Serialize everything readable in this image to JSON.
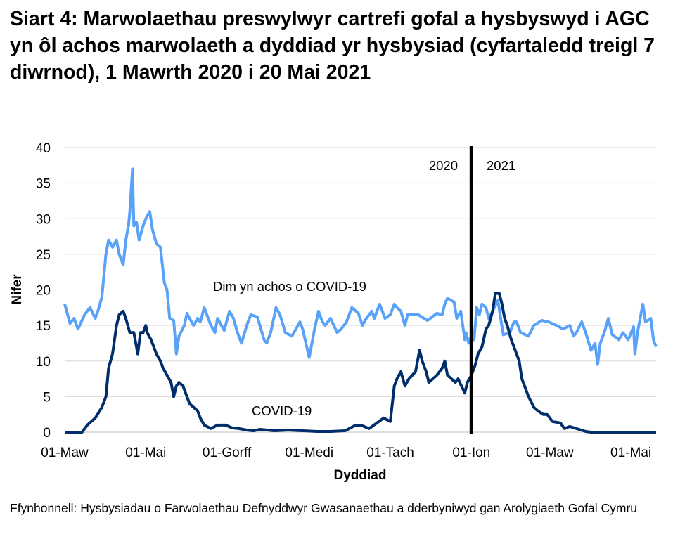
{
  "title": "Siart 4: Marwolaethau preswylwyr cartrefi gofal a hysbyswyd i AGC yn ôl achos marwolaeth a dyddiad yr hysbysiad (cyfartaledd treigl 7 diwrnod), 1 Mawrth 2020 i 20 Mai 2021",
  "source": "Ffynhonnell: Hysbysiadau o Farwolaethau Defnyddwyr Gwasanaethau a dderbyniwyd gan Arolygiaeth Gofal Cymru",
  "chart_data": {
    "type": "line",
    "title": "Siart 4: Marwolaethau preswylwyr cartrefi gofal a hysbyswyd i AGC yn ôl achos marwolaeth a dyddiad yr hysbysiad (cyfartaledd treigl 7 diwrnod), 1 Mawrth 2020 i 20 Mai 2021",
    "xlabel": "Dyddiad",
    "ylabel": "Nifer",
    "xlim": [
      "2020-03-01",
      "2021-05-20"
    ],
    "ylim": [
      0,
      40
    ],
    "yticks": [
      0,
      5,
      10,
      15,
      20,
      25,
      30,
      35,
      40
    ],
    "xticks": [
      {
        "date": "2020-03-01",
        "label": "01-Maw"
      },
      {
        "date": "2020-05-01",
        "label": "01-Mai"
      },
      {
        "date": "2020-07-01",
        "label": "01-Gorff"
      },
      {
        "date": "2020-09-01",
        "label": "01-Medi"
      },
      {
        "date": "2020-11-01",
        "label": "01-Tach"
      },
      {
        "date": "2021-01-01",
        "label": "01-Ion"
      },
      {
        "date": "2021-03-01",
        "label": "01-Maw"
      },
      {
        "date": "2021-05-01",
        "label": "01-Mai"
      }
    ],
    "grid": "horizontal",
    "year_divider": {
      "date": "2021-01-01",
      "left_label": "2020",
      "right_label": "2021",
      "color": "#000000"
    },
    "series": [
      {
        "name": "Dim yn achos o COVID-19",
        "color": "#5aa2f8",
        "points": [
          [
            "2020-03-01",
            18
          ],
          [
            "2020-03-05",
            15.3
          ],
          [
            "2020-03-08",
            16
          ],
          [
            "2020-03-11",
            14.5
          ],
          [
            "2020-03-16",
            16.5
          ],
          [
            "2020-03-20",
            17.5
          ],
          [
            "2020-03-24",
            16
          ],
          [
            "2020-03-26",
            17
          ],
          [
            "2020-03-29",
            19
          ],
          [
            "2020-04-01",
            25
          ],
          [
            "2020-04-03",
            27
          ],
          [
            "2020-04-06",
            26
          ],
          [
            "2020-04-09",
            27
          ],
          [
            "2020-04-11",
            25
          ],
          [
            "2020-04-14",
            23.5
          ],
          [
            "2020-04-16",
            27
          ],
          [
            "2020-04-18",
            29
          ],
          [
            "2020-04-19",
            31
          ],
          [
            "2020-04-21",
            37
          ],
          [
            "2020-04-22",
            29
          ],
          [
            "2020-04-24",
            29.5
          ],
          [
            "2020-04-26",
            27
          ],
          [
            "2020-04-29",
            29
          ],
          [
            "2020-05-01",
            30
          ],
          [
            "2020-05-04",
            31
          ],
          [
            "2020-05-06",
            28.5
          ],
          [
            "2020-05-09",
            26.5
          ],
          [
            "2020-05-12",
            26
          ],
          [
            "2020-05-15",
            21
          ],
          [
            "2020-05-17",
            20
          ],
          [
            "2020-05-19",
            16
          ],
          [
            "2020-05-22",
            15.7
          ],
          [
            "2020-05-24",
            11
          ],
          [
            "2020-05-26",
            13.5
          ],
          [
            "2020-05-30",
            15
          ],
          [
            "2020-06-01",
            16.7
          ],
          [
            "2020-06-03",
            16
          ],
          [
            "2020-06-06",
            15
          ],
          [
            "2020-06-09",
            16
          ],
          [
            "2020-06-11",
            15.5
          ],
          [
            "2020-06-14",
            17.5
          ],
          [
            "2020-06-19",
            15
          ],
          [
            "2020-06-22",
            14
          ],
          [
            "2020-06-24",
            16
          ],
          [
            "2020-06-29",
            14.3
          ],
          [
            "2020-07-03",
            17
          ],
          [
            "2020-07-06",
            16
          ],
          [
            "2020-07-09",
            14
          ],
          [
            "2020-07-12",
            12.5
          ],
          [
            "2020-07-16",
            15
          ],
          [
            "2020-07-19",
            16.5
          ],
          [
            "2020-07-24",
            16.2
          ],
          [
            "2020-07-29",
            13
          ],
          [
            "2020-07-31",
            12.5
          ],
          [
            "2020-08-03",
            14
          ],
          [
            "2020-08-07",
            17.5
          ],
          [
            "2020-08-10",
            16.5
          ],
          [
            "2020-08-14",
            14
          ],
          [
            "2020-08-19",
            13.5
          ],
          [
            "2020-08-25",
            15.5
          ],
          [
            "2020-08-27",
            14.5
          ],
          [
            "2020-09-01",
            10.5
          ],
          [
            "2020-09-05",
            14.5
          ],
          [
            "2020-09-08",
            17
          ],
          [
            "2020-09-11",
            15.5
          ],
          [
            "2020-09-13",
            15
          ],
          [
            "2020-09-17",
            16
          ],
          [
            "2020-09-22",
            14
          ],
          [
            "2020-09-25",
            14.5
          ],
          [
            "2020-09-29",
            15.5
          ],
          [
            "2020-10-03",
            17.5
          ],
          [
            "2020-10-08",
            16.7
          ],
          [
            "2020-10-11",
            15
          ],
          [
            "2020-10-14",
            16
          ],
          [
            "2020-10-18",
            17
          ],
          [
            "2020-10-20",
            16
          ],
          [
            "2020-10-24",
            18
          ],
          [
            "2020-10-28",
            16
          ],
          [
            "2020-11-01",
            16.5
          ],
          [
            "2020-11-04",
            18
          ],
          [
            "2020-11-06",
            17.5
          ],
          [
            "2020-11-09",
            17
          ],
          [
            "2020-11-12",
            15
          ],
          [
            "2020-11-14",
            16.5
          ],
          [
            "2020-11-22",
            16.5
          ],
          [
            "2020-11-29",
            15.7
          ],
          [
            "2020-12-06",
            16.7
          ],
          [
            "2020-12-10",
            16.5
          ],
          [
            "2020-12-12",
            18
          ],
          [
            "2020-12-14",
            18.8
          ],
          [
            "2020-12-19",
            18.3
          ],
          [
            "2020-12-21",
            16
          ],
          [
            "2020-12-24",
            17
          ],
          [
            "2020-12-27",
            13
          ],
          [
            "2020-12-28",
            14
          ],
          [
            "2020-12-30",
            12.5
          ],
          [
            "2021-01-01",
            13.5
          ],
          [
            "2021-01-03",
            13
          ],
          [
            "2021-01-05",
            17.5
          ],
          [
            "2021-01-07",
            16.5
          ],
          [
            "2021-01-09",
            18
          ],
          [
            "2021-01-12",
            17.5
          ],
          [
            "2021-01-14",
            16
          ],
          [
            "2021-01-17",
            17
          ],
          [
            "2021-01-21",
            18.5
          ],
          [
            "2021-01-23",
            16
          ],
          [
            "2021-01-25",
            13.7
          ],
          [
            "2021-01-30",
            14
          ],
          [
            "2021-02-02",
            15.5
          ],
          [
            "2021-02-04",
            15.5
          ],
          [
            "2021-02-07",
            14
          ],
          [
            "2021-02-13",
            13.5
          ],
          [
            "2021-02-17",
            15
          ],
          [
            "2021-02-23",
            15.7
          ],
          [
            "2021-02-28",
            15.5
          ],
          [
            "2021-03-06",
            15
          ],
          [
            "2021-03-11",
            14.5
          ],
          [
            "2021-03-16",
            15
          ],
          [
            "2021-03-19",
            13.5
          ],
          [
            "2021-03-21",
            14
          ],
          [
            "2021-03-25",
            15.5
          ],
          [
            "2021-03-28",
            14
          ],
          [
            "2021-04-01",
            11.5
          ],
          [
            "2021-04-04",
            12.5
          ],
          [
            "2021-04-06",
            9.5
          ],
          [
            "2021-04-08",
            12.5
          ],
          [
            "2021-04-11",
            14
          ],
          [
            "2021-04-14",
            16
          ],
          [
            "2021-04-17",
            13.7
          ],
          [
            "2021-04-22",
            13
          ],
          [
            "2021-04-25",
            14
          ],
          [
            "2021-04-29",
            13
          ],
          [
            "2021-05-03",
            14.8
          ],
          [
            "2021-05-04",
            11
          ],
          [
            "2021-05-06",
            14
          ],
          [
            "2021-05-10",
            18
          ],
          [
            "2021-05-12",
            15.5
          ],
          [
            "2021-05-16",
            16
          ],
          [
            "2021-05-18",
            13
          ],
          [
            "2021-05-20",
            12
          ]
        ]
      },
      {
        "name": "COVID-19",
        "color": "#002e6b",
        "points": [
          [
            "2020-03-01",
            0
          ],
          [
            "2020-03-14",
            0
          ],
          [
            "2020-03-18",
            1
          ],
          [
            "2020-03-24",
            2
          ],
          [
            "2020-03-29",
            3.5
          ],
          [
            "2020-04-01",
            5
          ],
          [
            "2020-04-03",
            9
          ],
          [
            "2020-04-06",
            11
          ],
          [
            "2020-04-09",
            15
          ],
          [
            "2020-04-11",
            16.5
          ],
          [
            "2020-04-14",
            17
          ],
          [
            "2020-04-16",
            16
          ],
          [
            "2020-04-19",
            14
          ],
          [
            "2020-04-22",
            14
          ],
          [
            "2020-04-24",
            12
          ],
          [
            "2020-04-25",
            11
          ],
          [
            "2020-04-27",
            14
          ],
          [
            "2020-04-29",
            14
          ],
          [
            "2020-05-01",
            15
          ],
          [
            "2020-05-02",
            14
          ],
          [
            "2020-05-05",
            13
          ],
          [
            "2020-05-09",
            11
          ],
          [
            "2020-05-12",
            10
          ],
          [
            "2020-05-14",
            9
          ],
          [
            "2020-05-17",
            8
          ],
          [
            "2020-05-20",
            7
          ],
          [
            "2020-05-22",
            5
          ],
          [
            "2020-05-24",
            6.5
          ],
          [
            "2020-05-26",
            7
          ],
          [
            "2020-05-29",
            6.5
          ],
          [
            "2020-06-01",
            5
          ],
          [
            "2020-06-03",
            4
          ],
          [
            "2020-06-06",
            3.5
          ],
          [
            "2020-06-09",
            3
          ],
          [
            "2020-06-11",
            2
          ],
          [
            "2020-06-14",
            1
          ],
          [
            "2020-06-19",
            0.5
          ],
          [
            "2020-06-24",
            1
          ],
          [
            "2020-06-30",
            1
          ],
          [
            "2020-07-05",
            0.6
          ],
          [
            "2020-07-10",
            0.5
          ],
          [
            "2020-07-16",
            0.3
          ],
          [
            "2020-07-21",
            0.2
          ],
          [
            "2020-07-26",
            0.4
          ],
          [
            "2020-08-06",
            0.2
          ],
          [
            "2020-08-16",
            0.3
          ],
          [
            "2020-08-27",
            0.2
          ],
          [
            "2020-09-07",
            0.1
          ],
          [
            "2020-09-17",
            0.1
          ],
          [
            "2020-09-28",
            0.2
          ],
          [
            "2020-10-06",
            1
          ],
          [
            "2020-10-11",
            0.9
          ],
          [
            "2020-10-16",
            0.5
          ],
          [
            "2020-10-22",
            1.3
          ],
          [
            "2020-10-27",
            2
          ],
          [
            "2020-11-01",
            1.5
          ],
          [
            "2020-11-04",
            6.5
          ],
          [
            "2020-11-06",
            7.5
          ],
          [
            "2020-11-09",
            8.5
          ],
          [
            "2020-11-12",
            6.5
          ],
          [
            "2020-11-15",
            7.5
          ],
          [
            "2020-11-20",
            8.5
          ],
          [
            "2020-11-23",
            11.5
          ],
          [
            "2020-11-25",
            10
          ],
          [
            "2020-11-28",
            8.5
          ],
          [
            "2020-11-30",
            7
          ],
          [
            "2020-12-06",
            8
          ],
          [
            "2020-12-10",
            9
          ],
          [
            "2020-12-12",
            10
          ],
          [
            "2020-12-14",
            8
          ],
          [
            "2020-12-20",
            7
          ],
          [
            "2020-12-22",
            7.5
          ],
          [
            "2020-12-27",
            5.5
          ],
          [
            "2020-12-29",
            7
          ],
          [
            "2021-01-01",
            8
          ],
          [
            "2021-01-04",
            9.5
          ],
          [
            "2021-01-06",
            11
          ],
          [
            "2021-01-09",
            12
          ],
          [
            "2021-01-12",
            14.5
          ],
          [
            "2021-01-14",
            15
          ],
          [
            "2021-01-17",
            17
          ],
          [
            "2021-01-19",
            19.5
          ],
          [
            "2021-01-22",
            19.5
          ],
          [
            "2021-01-24",
            18
          ],
          [
            "2021-01-26",
            16
          ],
          [
            "2021-01-28",
            15
          ],
          [
            "2021-01-31",
            13
          ],
          [
            "2021-02-03",
            11.5
          ],
          [
            "2021-02-06",
            10
          ],
          [
            "2021-02-08",
            7.5
          ],
          [
            "2021-02-11",
            6
          ],
          [
            "2021-02-13",
            5
          ],
          [
            "2021-02-17",
            3.5
          ],
          [
            "2021-02-20",
            3
          ],
          [
            "2021-02-24",
            2.5
          ],
          [
            "2021-02-27",
            2.5
          ],
          [
            "2021-03-03",
            1.5
          ],
          [
            "2021-03-09",
            1.3
          ],
          [
            "2021-03-12",
            0.5
          ],
          [
            "2021-03-16",
            0.8
          ],
          [
            "2021-03-21",
            0.5
          ],
          [
            "2021-03-28",
            0.1
          ],
          [
            "2021-04-01",
            0
          ],
          [
            "2021-05-20",
            0
          ]
        ]
      }
    ]
  }
}
